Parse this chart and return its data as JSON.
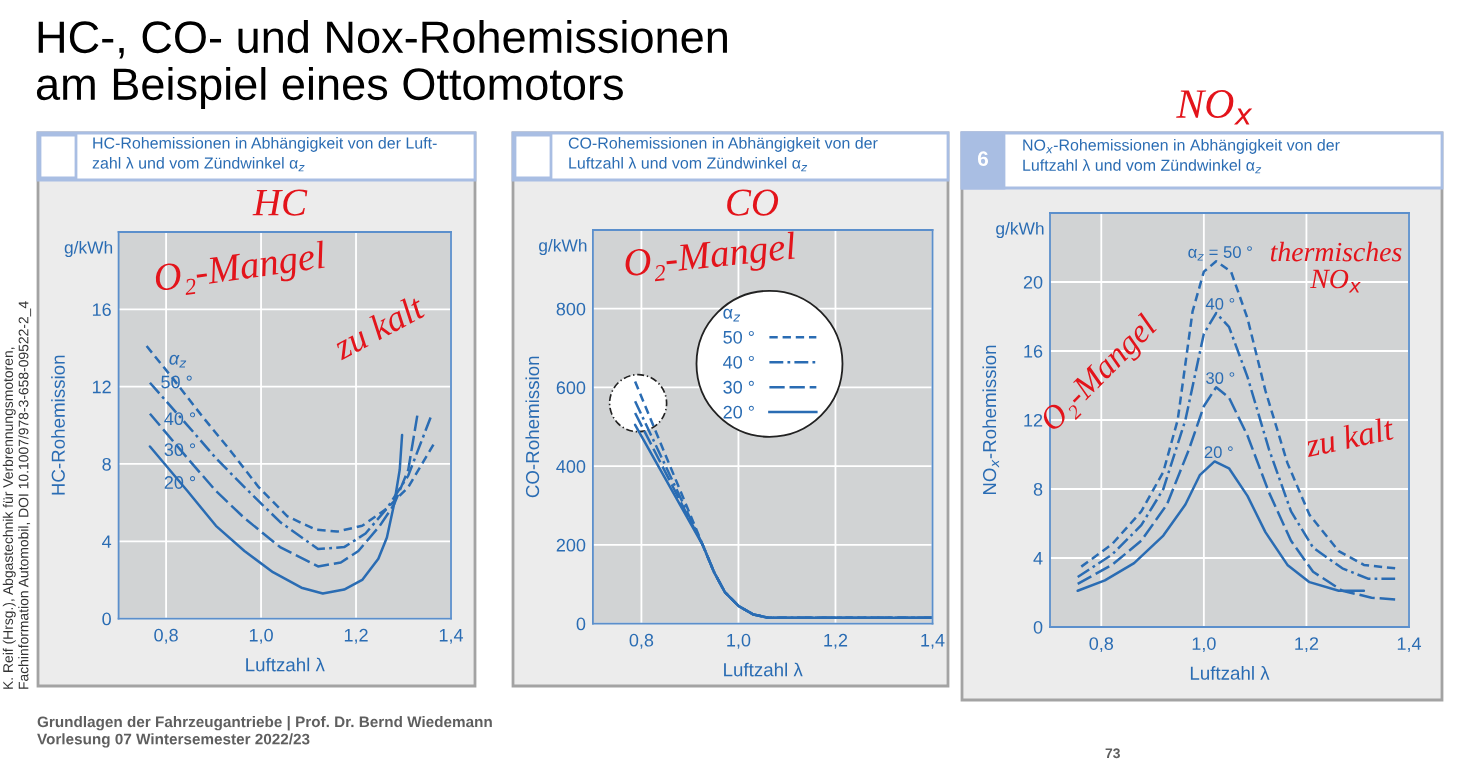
{
  "chart_data": [
    {
      "type": "other",
      "title": "HC-, CO- und Nox-Rohemissionen\nam Beispiel eines Ottomotors",
      "annotations": [
        "K. Reif (Hrsg.), Abgastechnik für Verbrennungsmotoren,\nFachinformation Automobil, DOI 10.1007/978-3-658-09522-2_4",
        "Grundlagen der Fahrzeugantriebe | Prof. Dr. Bernd Wiedemann\nVorlesung 07 Wintersemester 2022/23",
        "73"
      ]
    },
    {
      "type": "line",
      "title": "HC-Rohemissionen in Abhängigkeit von der Luft-\nzahl λ und vom Zündwinkel α$_{z}$",
      "xlabel": "Luftzahl λ",
      "ylabel": "HC-Rohemission",
      "legend_title": "α$_{z}$",
      "annotations": [
        "g/kWh",
        "HC",
        "O₂-Mangel",
        "zu kalt"
      ],
      "xlim": [
        0.7,
        1.4
      ],
      "xticks": [
        {
          "value": 0.8,
          "label": "0,8"
        },
        {
          "value": 1.0,
          "label": "1,0"
        },
        {
          "value": 1.2,
          "label": "1,2"
        },
        {
          "value": 1.4,
          "label": "1,4"
        }
      ],
      "ylim": [
        0,
        20
      ],
      "yticks": [
        0,
        4,
        8,
        12,
        16
      ],
      "grid": true,
      "series": [
        {
          "name": "50 °",
          "color": "#2a6cb3",
          "line_style": "dashed",
          "x": [
            0.759,
            0.815,
            0.875,
            0.935,
            0.995,
            1.055,
            1.115,
            1.16,
            1.213,
            1.265,
            1.31,
            1.363
          ],
          "values": [
            14.1,
            12.4,
            10.5,
            8.7,
            6.8,
            5.3,
            4.6,
            4.5,
            4.8,
            5.7,
            6.8,
            9.0
          ]
        },
        {
          "name": "40 °",
          "color": "#2a6cb3",
          "line_style": "dashdot",
          "x": [
            0.766,
            0.845,
            0.905,
            0.965,
            1.04,
            1.12,
            1.175,
            1.22,
            1.265,
            1.31,
            1.357
          ],
          "values": [
            12.2,
            10.0,
            8.3,
            6.8,
            5.0,
            3.6,
            3.7,
            4.4,
            5.7,
            7.4,
            10.4
          ]
        },
        {
          "name": "30 °",
          "color": "#2a6cb3",
          "line_style": "long dashed",
          "x": [
            0.766,
            0.845,
            0.905,
            0.965,
            1.04,
            1.12,
            1.168,
            1.205,
            1.25,
            1.28,
            1.31,
            1.329
          ],
          "values": [
            10.6,
            8.3,
            6.6,
            5.2,
            3.7,
            2.7,
            2.9,
            3.5,
            4.8,
            5.9,
            7.7,
            10.5
          ]
        },
        {
          "name": "20 °",
          "color": "#2a6cb3",
          "line_style": "solid",
          "x": [
            0.766,
            0.845,
            0.905,
            0.965,
            1.025,
            1.085,
            1.13,
            1.175,
            1.213,
            1.247,
            1.265,
            1.28,
            1.292,
            1.297
          ],
          "values": [
            8.9,
            6.6,
            4.8,
            3.5,
            2.4,
            1.6,
            1.3,
            1.5,
            2.0,
            3.1,
            4.2,
            5.9,
            7.7,
            9.5
          ]
        }
      ]
    },
    {
      "type": "line",
      "title": "CO-Rohemissionen in Abhängigkeit von der\nLuftzahl λ und vom Zündwinkel α$_{z}$",
      "xlabel": "Luftzahl λ",
      "ylabel": "CO-Rohemission",
      "legend_title": "α$_{z}$",
      "legend": "top",
      "annotations": [
        "g/kWh",
        "CO",
        "O₂-Mangel"
      ],
      "xlim": [
        0.7,
        1.4
      ],
      "xticks": [
        {
          "value": 0.8,
          "label": "0,8"
        },
        {
          "value": 1.0,
          "label": "1,0"
        },
        {
          "value": 1.2,
          "label": "1,2"
        },
        {
          "value": 1.4,
          "label": "1,4"
        }
      ],
      "ylim": [
        0,
        1000
      ],
      "yticks": [
        0,
        200,
        400,
        600,
        800
      ],
      "grid": true,
      "series": [
        {
          "name": "50 °",
          "color": "#2a6cb3",
          "line_style": "dashed",
          "x": [
            0.787,
            0.927,
            0.95,
            0.972,
            1.001,
            1.031,
            1.061,
            1.4
          ],
          "values": [
            615,
            198,
            130,
            80,
            44,
            23,
            15,
            15
          ]
        },
        {
          "name": "40 °",
          "color": "#2a6cb3",
          "line_style": "dashdot",
          "x": [
            0.787,
            0.927,
            0.95,
            0.972,
            1.001,
            1.031,
            1.061,
            1.4
          ],
          "values": [
            565,
            198,
            130,
            80,
            44,
            23,
            15,
            15
          ]
        },
        {
          "name": "30 °",
          "color": "#2a6cb3",
          "line_style": "long dashed",
          "x": [
            0.787,
            0.927,
            0.95,
            0.972,
            1.001,
            1.031,
            1.061,
            1.4
          ],
          "values": [
            535,
            198,
            130,
            80,
            44,
            23,
            15,
            15
          ]
        },
        {
          "name": "20 °",
          "color": "#2a6cb3",
          "line_style": "solid",
          "x": [
            0.787,
            0.927,
            0.95,
            0.972,
            1.001,
            1.031,
            1.061,
            1.4
          ],
          "values": [
            505,
            198,
            130,
            80,
            44,
            23,
            15,
            15
          ]
        }
      ]
    },
    {
      "type": "line",
      "title": "NO$_{x}$-Rohemissionen in Abhängigkeit von der\nLuftzahl λ und vom Zündwinkel α$_{z}$",
      "xlabel": "Luftzahl λ",
      "ylabel": "NO$_{x}$-Rohemission",
      "annotations": [
        "g/kWh",
        "6",
        "NO$_{x}$",
        "thermisches\nNO$_{x}$",
        "O₂-Mangel",
        "zu kalt"
      ],
      "xlim": [
        0.7,
        1.4
      ],
      "xticks": [
        {
          "value": 0.8,
          "label": "0,8"
        },
        {
          "value": 1.0,
          "label": "1,0"
        },
        {
          "value": 1.2,
          "label": "1,2"
        },
        {
          "value": 1.4,
          "label": "1,4"
        }
      ],
      "ylim": [
        0,
        24
      ],
      "yticks": [
        0,
        4,
        8,
        12,
        16,
        20
      ],
      "grid": true,
      "series": [
        {
          "name": "α$_{z}$ = 50 °",
          "color": "#2a6cb3",
          "line_style": "dashed",
          "x": [
            0.761,
            0.821,
            0.878,
            0.921,
            0.949,
            0.978,
            1.0,
            1.024,
            1.053,
            1.085,
            1.12,
            1.163,
            1.206,
            1.263,
            1.312,
            1.373
          ],
          "values": [
            3.5,
            4.8,
            6.7,
            9.0,
            12.0,
            18.3,
            20.6,
            21.2,
            20.6,
            17.9,
            13.7,
            9.5,
            6.5,
            4.4,
            3.6,
            3.4
          ]
        },
        {
          "name": "40 °",
          "color": "#2a6cb3",
          "line_style": "dashdot",
          "x": [
            0.754,
            0.821,
            0.878,
            0.921,
            0.964,
            1.0,
            1.024,
            1.049,
            1.085,
            1.127,
            1.17,
            1.213,
            1.27,
            1.32,
            1.373
          ],
          "values": [
            2.9,
            4.2,
            5.9,
            8.0,
            12.0,
            17.0,
            18.2,
            17.4,
            14.5,
            10.3,
            6.7,
            4.6,
            3.4,
            2.8,
            2.8
          ]
        },
        {
          "name": "30 °",
          "color": "#2a6cb3",
          "line_style": "long dashed",
          "x": [
            0.754,
            0.821,
            0.878,
            0.928,
            0.971,
            1.0,
            1.024,
            1.049,
            1.085,
            1.127,
            1.17,
            1.213,
            1.27,
            1.327,
            1.373
          ],
          "values": [
            2.5,
            3.6,
            5.0,
            7.1,
            10.3,
            12.8,
            13.9,
            13.3,
            11.1,
            7.8,
            5.0,
            3.2,
            2.1,
            1.7,
            1.6
          ]
        },
        {
          "name": "20 °",
          "color": "#2a6cb3",
          "line_style": "solid",
          "x": [
            0.754,
            0.807,
            0.864,
            0.921,
            0.964,
            0.992,
            1.021,
            1.049,
            1.085,
            1.12,
            1.163,
            1.206,
            1.263,
            1.312
          ],
          "values": [
            2.1,
            2.7,
            3.7,
            5.3,
            7.1,
            8.8,
            9.6,
            9.2,
            7.6,
            5.5,
            3.6,
            2.6,
            2.1,
            2.1
          ]
        }
      ]
    }
  ]
}
